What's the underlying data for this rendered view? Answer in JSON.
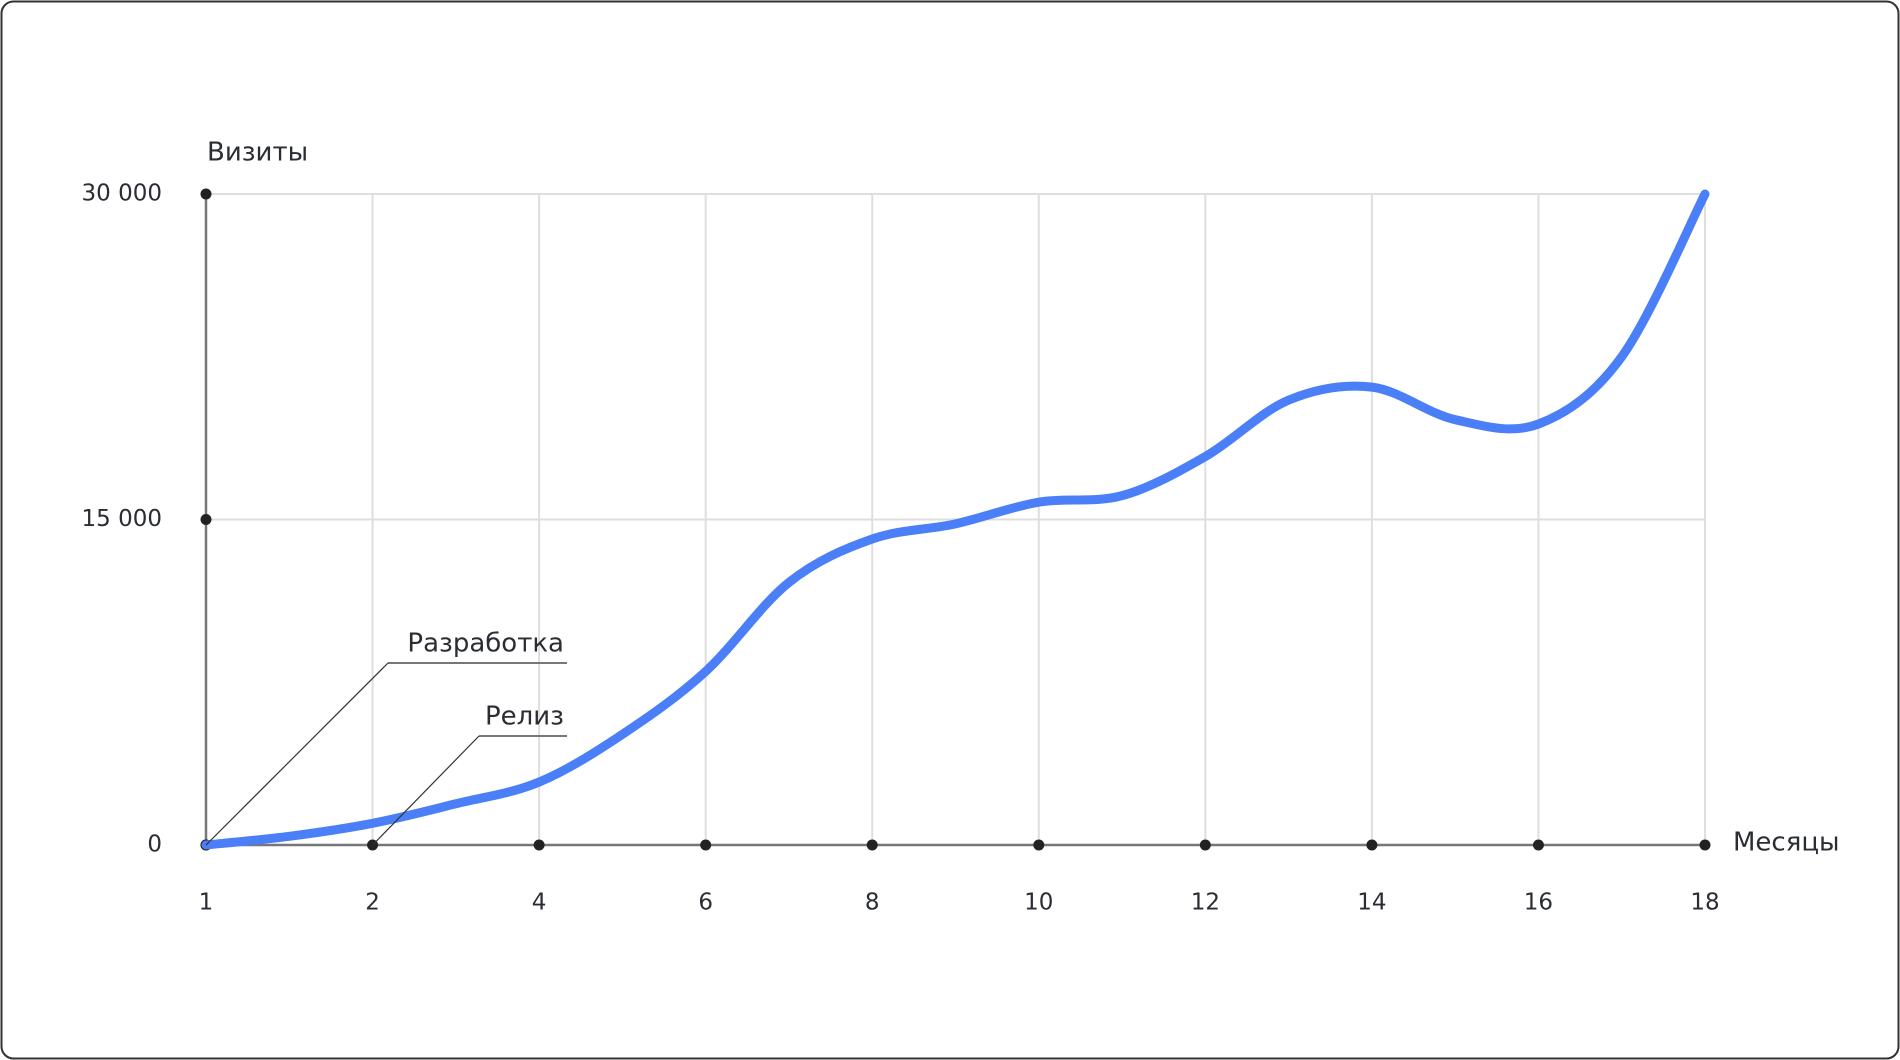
{
  "chart_data": {
    "type": "line",
    "y_label": "Визиты",
    "x_label": "Месяцы",
    "categories": [
      "1",
      null,
      "2",
      null,
      "4",
      null,
      "6",
      null,
      "8",
      null,
      "10",
      null,
      "12",
      null,
      "14",
      null,
      "16",
      null,
      "18"
    ],
    "series": [
      {
        "color": "#4a7ff7",
        "values": [
          0,
          400,
          1000,
          1900,
          2900,
          5100,
          8000,
          12100,
          14100,
          14800,
          15800,
          16100,
          17900,
          20500,
          21100,
          19600,
          19400,
          22500,
          30000
        ]
      }
    ],
    "ylim": [
      0,
      30000
    ],
    "yticks": [
      0,
      {
        "value": 15000,
        "label": "15 000"
      },
      {
        "value": 30000,
        "label": "30 000"
      }
    ],
    "grid": true,
    "annotations": [
      "Разработка",
      "Релиз"
    ]
  }
}
